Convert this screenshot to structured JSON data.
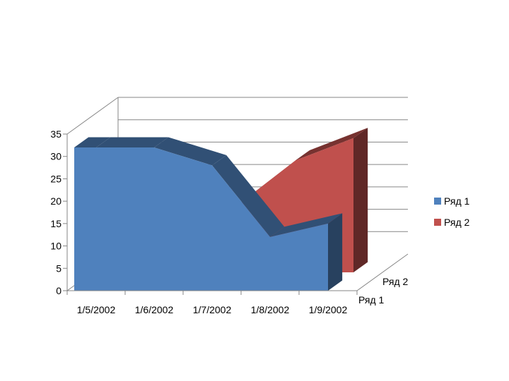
{
  "chart_data": {
    "type": "area",
    "style": "3d",
    "categories": [
      "1/5/2002",
      "1/6/2002",
      "1/7/2002",
      "1/8/2002",
      "1/9/2002"
    ],
    "series": [
      {
        "name": "Ряд 1",
        "values": [
          32,
          32,
          28,
          12,
          15
        ],
        "color": "#4f81bd"
      },
      {
        "name": "Ряд 2",
        "values": [
          0,
          5,
          15,
          25,
          30
        ],
        "color": "#c0504d"
      }
    ],
    "ylim": [
      0,
      35
    ],
    "yticks": [
      "0",
      "5",
      "10",
      "15",
      "20",
      "25",
      "30",
      "35"
    ],
    "depth_labels": [
      "Ряд 1",
      "Ряд 2"
    ],
    "grid": true,
    "legend_position": "right"
  }
}
